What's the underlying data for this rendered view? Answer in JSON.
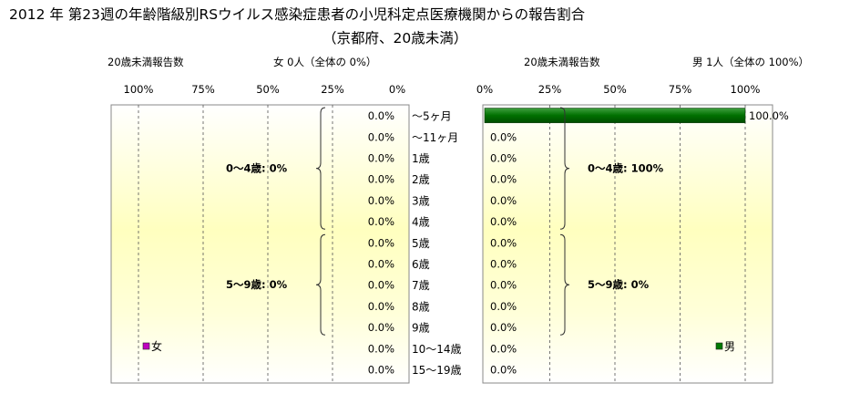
{
  "title": "2012 年 第23週の年齢階級別RSウイルス感染症患者の小児科定点医療機関からの報告割合",
  "subtitle": "（京都府、20歳未満）",
  "chart_data": {
    "type": "bar",
    "orientation": "horizontal",
    "categories": [
      "～5ヶ月",
      "～11ヶ月",
      "1歳",
      "2歳",
      "3歳",
      "4歳",
      "5歳",
      "6歳",
      "7歳",
      "8歳",
      "9歳",
      "10～14歳",
      "15～19歳"
    ],
    "xlim": [
      0,
      100
    ],
    "tick_labels": [
      "0%",
      "25%",
      "50%",
      "75%",
      "100%"
    ],
    "grid": true,
    "panels": [
      {
        "side": "left",
        "direction": "reversed",
        "header_label": "20歳未満報告数",
        "header_count": "女  0人（全体の   0%）",
        "legend_label": "女",
        "color": "#c000c0",
        "values": [
          0,
          0,
          0,
          0,
          0,
          0,
          0,
          0,
          0,
          0,
          0,
          0,
          0
        ],
        "value_labels": [
          "0.0%",
          "0.0%",
          "0.0%",
          "0.0%",
          "0.0%",
          "0.0%",
          "0.0%",
          "0.0%",
          "0.0%",
          "0.0%",
          "0.0%",
          "0.0%",
          "0.0%"
        ],
        "groups": [
          {
            "label": "0～4歳:  0%",
            "from": 0,
            "to": 5
          },
          {
            "label": "5～9歳:  0%",
            "from": 6,
            "to": 10
          }
        ]
      },
      {
        "side": "right",
        "direction": "normal",
        "header_label": "20歳未満報告数",
        "header_count": "男  1人（全体の   100%）",
        "legend_label": "男",
        "color": "#007a00",
        "values": [
          100,
          0,
          0,
          0,
          0,
          0,
          0,
          0,
          0,
          0,
          0,
          0,
          0
        ],
        "value_labels": [
          "100.0%",
          "0.0%",
          "0.0%",
          "0.0%",
          "0.0%",
          "0.0%",
          "0.0%",
          "0.0%",
          "0.0%",
          "0.0%",
          "0.0%",
          "0.0%",
          "0.0%"
        ],
        "groups": [
          {
            "label": "0～4歳: 100%",
            "from": 0,
            "to": 5
          },
          {
            "label": "5～9歳:  0%",
            "from": 6,
            "to": 10
          }
        ]
      }
    ]
  }
}
